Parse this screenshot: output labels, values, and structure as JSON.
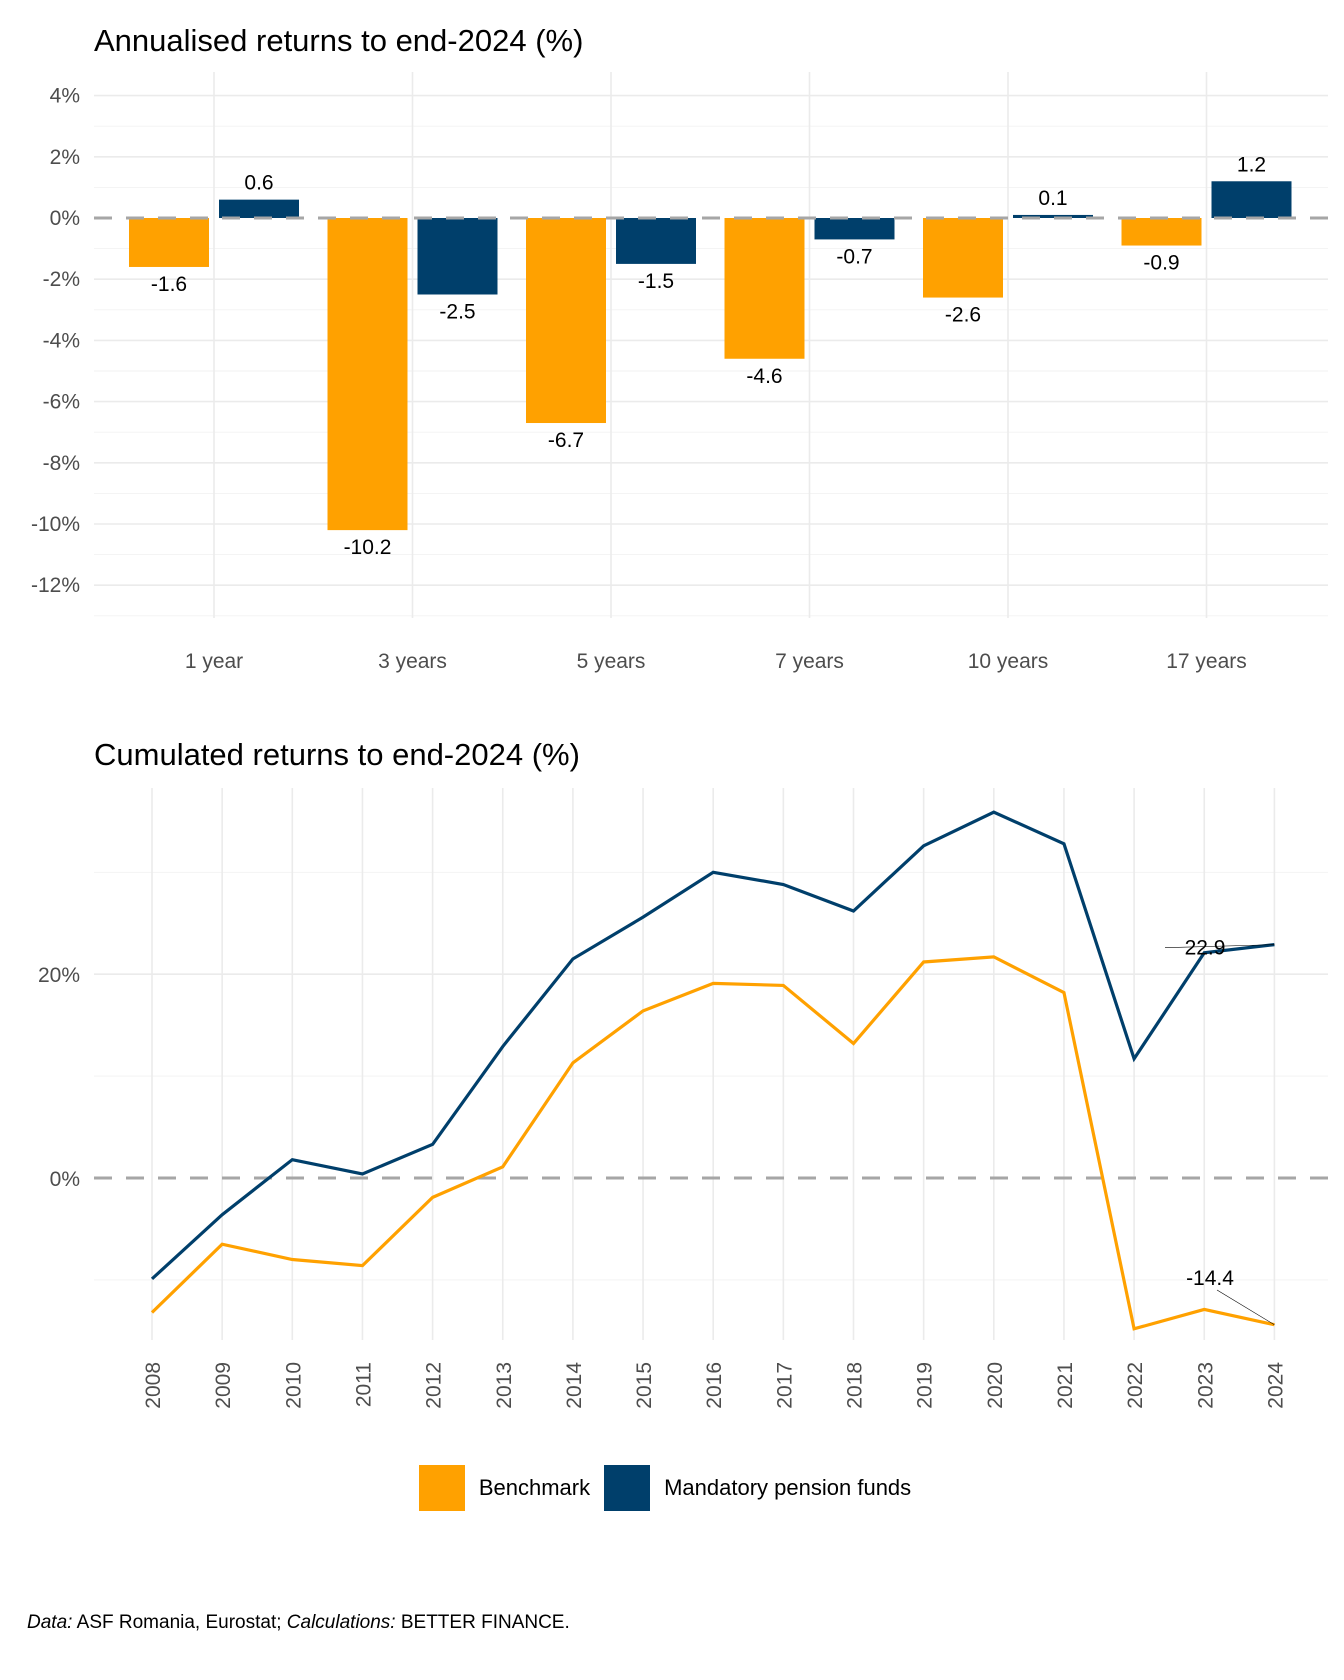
{
  "chart_data": [
    {
      "type": "bar",
      "title": "Annualised returns to end-2024 (%)",
      "xlabel": "",
      "ylabel": "",
      "categories": [
        "1 year",
        "3 years",
        "5 years",
        "7 years",
        "10 years",
        "17 years"
      ],
      "series": [
        {
          "name": "Benchmark",
          "color": "#FFA100",
          "values": [
            -1.6,
            -10.2,
            -6.7,
            -4.6,
            -2.6,
            -0.9
          ]
        },
        {
          "name": "Mandatory pension funds",
          "color": "#003F6B",
          "values": [
            0.6,
            -2.5,
            -1.5,
            -0.7,
            0.1,
            1.2
          ]
        }
      ],
      "data_labels": {
        "Benchmark": [
          "-1.6",
          "-10.2",
          "-6.7",
          "-4.6",
          "-2.6",
          "-0.9"
        ],
        "Mandatory pension funds": [
          "0.6",
          "-2.5",
          "-1.5",
          "-0.7",
          "0.1",
          "1.2"
        ]
      },
      "yticks": [
        4,
        2,
        0,
        -2,
        -4,
        -6,
        -8,
        -10,
        -12
      ],
      "ytick_labels": [
        "4%",
        "2%",
        "0%",
        "-2%",
        "-4%",
        "-6%",
        "-8%",
        "-10%",
        "-12%"
      ],
      "ylim": [
        -13.3,
        4.8
      ],
      "grid": true,
      "reference_line": {
        "y": 0,
        "style": "dashed"
      }
    },
    {
      "type": "line",
      "title": "Cumulated returns to end-2024 (%)",
      "xlabel": "",
      "ylabel": "",
      "x": [
        "2008",
        "2009",
        "2010",
        "2011",
        "2012",
        "2013",
        "2014",
        "2015",
        "2016",
        "2017",
        "2018",
        "2019",
        "2020",
        "2021",
        "2022",
        "2023",
        "2024"
      ],
      "series": [
        {
          "name": "Benchmark",
          "color": "#FFA100",
          "values": [
            -13.2,
            -6.5,
            -8.0,
            -8.6,
            -1.9,
            1.1,
            11.3,
            16.4,
            19.1,
            18.9,
            13.2,
            21.2,
            21.7,
            18.2,
            -14.8,
            -12.9,
            -14.4
          ]
        },
        {
          "name": "Mandatory pension funds",
          "color": "#003F6B",
          "values": [
            -9.9,
            -3.6,
            1.8,
            0.4,
            3.3,
            12.9,
            21.5,
            25.6,
            30.0,
            28.8,
            26.2,
            32.6,
            35.9,
            32.8,
            11.7,
            22.1,
            22.9
          ]
        }
      ],
      "annotations": [
        {
          "series": "Mandatory pension funds",
          "x": "2024",
          "text": "22.9"
        },
        {
          "series": "Benchmark",
          "x": "2024",
          "text": "-14.4"
        }
      ],
      "yticks": [
        20,
        0
      ],
      "ytick_labels": [
        "20%",
        "0%"
      ],
      "ylim": [
        -18,
        38
      ],
      "grid": true,
      "reference_line": {
        "y": 0,
        "style": "dashed"
      }
    }
  ],
  "legend": {
    "placement": "bottom",
    "items": [
      {
        "label": "Benchmark",
        "color": "#FFA100"
      },
      {
        "label": "Mandatory pension funds",
        "color": "#003F6B"
      }
    ]
  },
  "caption": {
    "data_label": "Data:",
    "data_text": " ASF Romania, Eurostat; ",
    "calc_label": "Calculations:",
    "calc_text": " BETTER FINANCE."
  }
}
